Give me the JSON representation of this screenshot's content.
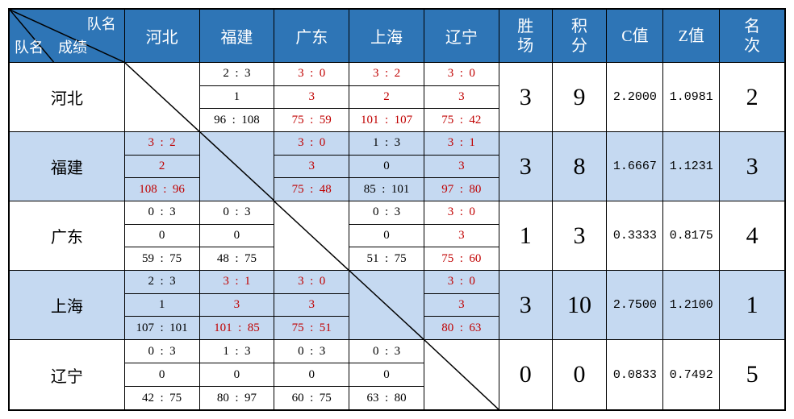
{
  "corner": {
    "top": "队名",
    "left": "队名",
    "mid": "成绩"
  },
  "teams": [
    "河北",
    "福建",
    "广东",
    "上海",
    "辽宁"
  ],
  "stat_headers": [
    "胜\n场",
    "积\n分",
    "C值",
    "Z值",
    "名\n次"
  ],
  "colors": {
    "header_bg": "#2e75b6",
    "header_fg": "#ffffff",
    "alt_bg": "#c5d9f1",
    "red": "#c00000",
    "border": "#000000"
  },
  "rows": [
    {
      "team": "河北",
      "alt": false,
      "cells": [
        {
          "diag": true
        },
        {
          "red": false,
          "set": "2  :  3",
          "pts": "1",
          "score": "96  :  108"
        },
        {
          "red": true,
          "set": "3  :  0",
          "pts": "3",
          "score": "75  :  59"
        },
        {
          "red": true,
          "set": "3  :  2",
          "pts": "2",
          "score": "101  :  107"
        },
        {
          "red": true,
          "set": "3  :  0",
          "pts": "3",
          "score": "75  :  42"
        }
      ],
      "wins": "3",
      "points": "9",
      "c": "2.2000",
      "z": "1.0981",
      "rank": "2"
    },
    {
      "team": "福建",
      "alt": true,
      "cells": [
        {
          "red": true,
          "set": "3  :  2",
          "pts": "2",
          "score": "108  :  96"
        },
        {
          "diag": true
        },
        {
          "red": true,
          "set": "3  :  0",
          "pts": "3",
          "score": "75  :  48"
        },
        {
          "red": false,
          "set": "1  :  3",
          "pts": "0",
          "score": "85  :  101"
        },
        {
          "red": true,
          "set": "3  :  1",
          "pts": "3",
          "score": "97  :  80"
        }
      ],
      "wins": "3",
      "points": "8",
      "c": "1.6667",
      "z": "1.1231",
      "rank": "3"
    },
    {
      "team": "广东",
      "alt": false,
      "cells": [
        {
          "red": false,
          "set": "0  :  3",
          "pts": "0",
          "score": "59  :  75"
        },
        {
          "red": false,
          "set": "0  :  3",
          "pts": "0",
          "score": "48  :  75"
        },
        {
          "diag": true
        },
        {
          "red": false,
          "set": "0  :  3",
          "pts": "0",
          "score": "51  :  75"
        },
        {
          "red": true,
          "set": "3  :  0",
          "pts": "3",
          "score": "75  :  60"
        }
      ],
      "wins": "1",
      "points": "3",
      "c": "0.3333",
      "z": "0.8175",
      "rank": "4"
    },
    {
      "team": "上海",
      "alt": true,
      "cells": [
        {
          "red": false,
          "set": "2  :  3",
          "pts": "1",
          "score": "107  :  101"
        },
        {
          "red": true,
          "set": "3  :  1",
          "pts": "3",
          "score": "101  :  85"
        },
        {
          "red": true,
          "set": "3  :  0",
          "pts": "3",
          "score": "75  :  51"
        },
        {
          "diag": true
        },
        {
          "red": true,
          "set": "3  :  0",
          "pts": "3",
          "score": "80  :  63"
        }
      ],
      "wins": "3",
      "points": "10",
      "c": "2.7500",
      "z": "1.2100",
      "rank": "1"
    },
    {
      "team": "辽宁",
      "alt": false,
      "cells": [
        {
          "red": false,
          "set": "0  :  3",
          "pts": "0",
          "score": "42  :  75"
        },
        {
          "red": false,
          "set": "1  :  3",
          "pts": "0",
          "score": "80  :  97"
        },
        {
          "red": false,
          "set": "0  :  3",
          "pts": "0",
          "score": "60  :  75"
        },
        {
          "red": false,
          "set": "0  :  3",
          "pts": "0",
          "score": "63  :  80"
        },
        {
          "diag": true
        }
      ],
      "wins": "0",
      "points": "0",
      "c": "0.0833",
      "z": "0.7492",
      "rank": "5"
    }
  ]
}
